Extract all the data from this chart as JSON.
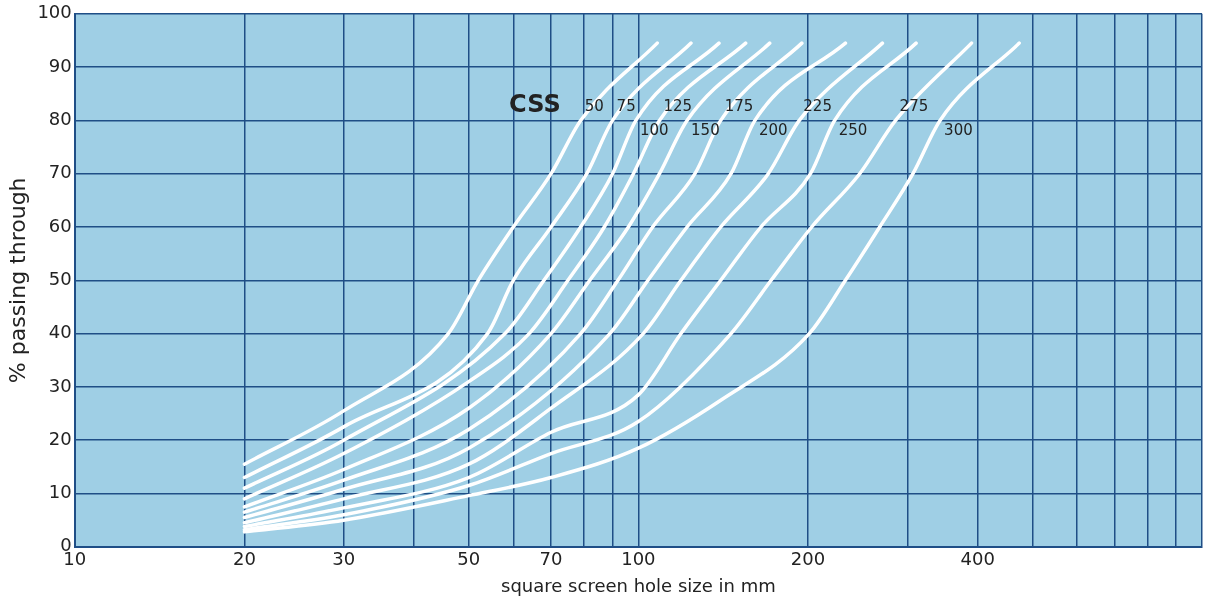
{
  "chart_data": {
    "type": "line",
    "xlabel": "square screen hole size in mm",
    "ylabel": "% passing through",
    "annotations": [
      "CSS"
    ],
    "log": "x",
    "grid": true,
    "legend": false,
    "marker": "none",
    "line_style": "solid",
    "xlim": [
      10,
      1000
    ],
    "ylim": [
      0,
      100
    ],
    "xticks": [
      10,
      20,
      30,
      {
        "value": 40,
        "label": null
      },
      50,
      {
        "value": 60,
        "label": null
      },
      70,
      {
        "value": 80,
        "label": null
      },
      {
        "value": 90,
        "label": null
      },
      100,
      200,
      {
        "value": 300,
        "label": null
      },
      400,
      {
        "value": 500,
        "label": null
      },
      {
        "value": 600,
        "label": null
      },
      {
        "value": 700,
        "label": null
      },
      {
        "value": 800,
        "label": null
      },
      {
        "value": 900,
        "label": null
      },
      {
        "value": 1000,
        "label": null
      }
    ],
    "yticks": [
      0,
      10,
      20,
      30,
      40,
      50,
      60,
      70,
      80,
      90,
      100
    ],
    "series": [
      {
        "name": "50",
        "color": "#ffffff",
        "x": [
          20,
          30,
          46,
          52,
          60,
          70,
          79,
          108
        ],
        "values": [
          15.5,
          25.5,
          40,
          50,
          60,
          70,
          80,
          94.5
        ]
      },
      {
        "name": "75",
        "color": "#ffffff",
        "x": [
          20,
          30,
          54,
          60,
          70,
          81,
          90,
          124
        ],
        "values": [
          13,
          22.5,
          40,
          50,
          60,
          70,
          80,
          94.5
        ]
      },
      {
        "name": "100",
        "color": "#ffffff",
        "x": [
          20,
          30,
          58,
          68,
          79,
          90,
          99,
          139
        ],
        "values": [
          11,
          20,
          40,
          50,
          60,
          70,
          80,
          94.5
        ]
      },
      {
        "name": "125",
        "color": "#ffffff",
        "x": [
          20,
          30,
          50,
          64,
          75,
          87,
          98,
          109,
          155
        ],
        "values": [
          9,
          17.5,
          31,
          40,
          50,
          60,
          70,
          80,
          94.5
        ]
      },
      {
        "name": "150",
        "color": "#ffffff",
        "x": [
          20,
          30,
          50,
          70,
          82,
          96,
          109,
          122,
          171
        ],
        "values": [
          7.5,
          14.5,
          26,
          40,
          50,
          60,
          70,
          80,
          94.5
        ]
      },
      {
        "name": "175",
        "color": "#ffffff",
        "x": [
          20,
          30,
          50,
          79,
          92,
          106,
          126,
          140,
          195
        ],
        "values": [
          6.5,
          12.5,
          22,
          40,
          50,
          60,
          70,
          80,
          94.5
        ]
      },
      {
        "name": "200",
        "color": "#ffffff",
        "x": [
          20,
          30,
          50,
          89,
          104,
          122,
          146,
          161,
          233
        ],
        "values": [
          5.5,
          10.8,
          18.5,
          40,
          50,
          60,
          70,
          80,
          94.5
        ]
      },
      {
        "name": "225",
        "color": "#ffffff",
        "x": [
          20,
          30,
          50,
          70,
          102,
          119,
          140,
          170,
          193,
          271
        ],
        "values": [
          4.5,
          9,
          15.5,
          26,
          40,
          50,
          60,
          70,
          80,
          94.5
        ]
      },
      {
        "name": "250",
        "color": "#ffffff",
        "x": [
          20,
          30,
          50,
          70,
          100,
          119,
          140,
          165,
          202,
          223,
          311
        ],
        "values": [
          3.8,
          7.3,
          13,
          21.5,
          28.5,
          40,
          50,
          60,
          70,
          80,
          94.5
        ]
      },
      {
        "name": "275",
        "color": "#ffffff",
        "x": [
          20,
          30,
          50,
          70,
          100,
          146,
          172,
          203,
          247,
          286,
          390
        ],
        "values": [
          3.2,
          6,
          11.5,
          17.5,
          23.5,
          40,
          50,
          60,
          70,
          80,
          94.5
        ]
      },
      {
        "name": "300",
        "color": "#ffffff",
        "x": [
          20,
          30,
          50,
          70,
          100,
          140,
          201,
          233,
          268,
          307,
          343,
          474
        ],
        "values": [
          2.8,
          5,
          9.6,
          13,
          18.5,
          27.5,
          40,
          50,
          60,
          70,
          80,
          94.5
        ]
      }
    ]
  }
}
